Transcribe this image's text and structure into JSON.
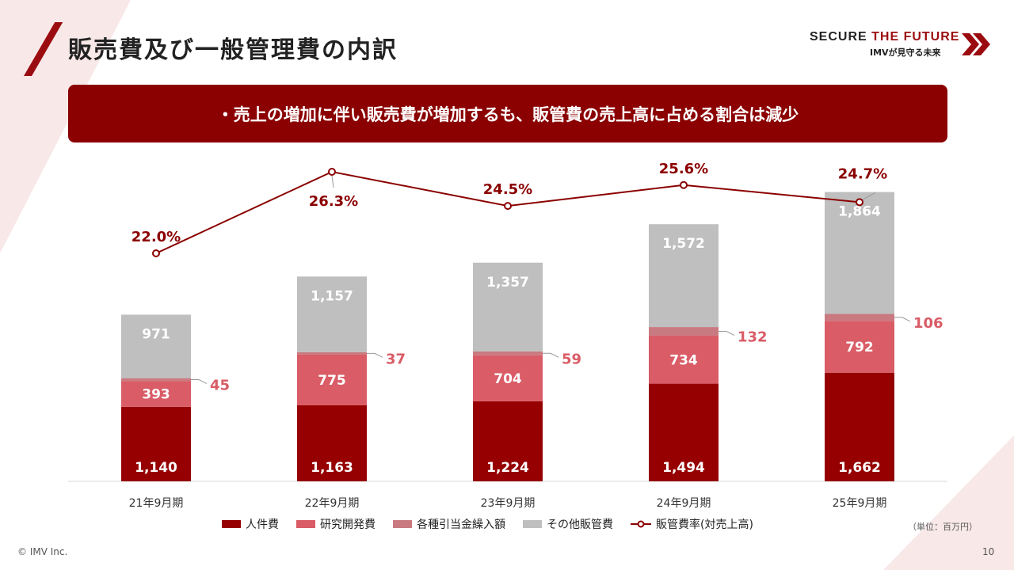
{
  "header": {
    "title": "販売費及び一般管理費の内訳",
    "logo_main_1": "SECURE ",
    "logo_main_2": "THE FUTURE",
    "logo_sub": "IMVが見守る未来"
  },
  "banner": {
    "text": "・売上の増加に伴い販売費が増加するも、販管費の売上高に占める割合は減少"
  },
  "colors": {
    "personnel": "#960000",
    "rd": "#d95c66",
    "discount": "#c97a80",
    "other": "#bfbfbf",
    "line": "#8b0000",
    "brand": "#9b0c10"
  },
  "chart_data": {
    "type": "bar",
    "stacked": true,
    "categories": [
      "21年9月期",
      "22年9月期",
      "23年9月期",
      "24年9月期",
      "25年9月期"
    ],
    "series": [
      {
        "name": "人件費",
        "values": [
          1140,
          1163,
          1224,
          1494,
          1662
        ],
        "labels": [
          "1,140",
          "1,163",
          "1,224",
          "1,494",
          "1,662"
        ]
      },
      {
        "name": "研究開発費",
        "values": [
          393,
          775,
          704,
          734,
          792
        ],
        "labels": [
          "393",
          "775",
          "704",
          "734",
          "792"
        ]
      },
      {
        "name": "各種引当金繰入額",
        "values": [
          45,
          37,
          59,
          132,
          106
        ],
        "labels": [
          "45",
          "37",
          "59",
          "132",
          "106"
        ]
      },
      {
        "name": "その他販管費",
        "values": [
          971,
          1157,
          1357,
          1572,
          1864
        ],
        "labels": [
          "971",
          "1,157",
          "1,357",
          "1,572",
          "1,864"
        ]
      }
    ],
    "line_series": {
      "name": "販管費率(対売上高)",
      "values": [
        22.0,
        26.3,
        24.5,
        25.6,
        24.7
      ],
      "labels": [
        "22.0%",
        "26.3%",
        "24.5%",
        "25.6%",
        "24.7%"
      ]
    },
    "unit": "百万円"
  },
  "legend": {
    "personnel": "人件費",
    "rd": "研究開発費",
    "discount": "各種引当金繰入額",
    "other": "その他販管費",
    "ratio": "販管費率(対売上高)"
  },
  "footer": {
    "unit_note": "（単位：百万円）",
    "copyright": "© IMV Inc.",
    "page": "10"
  }
}
